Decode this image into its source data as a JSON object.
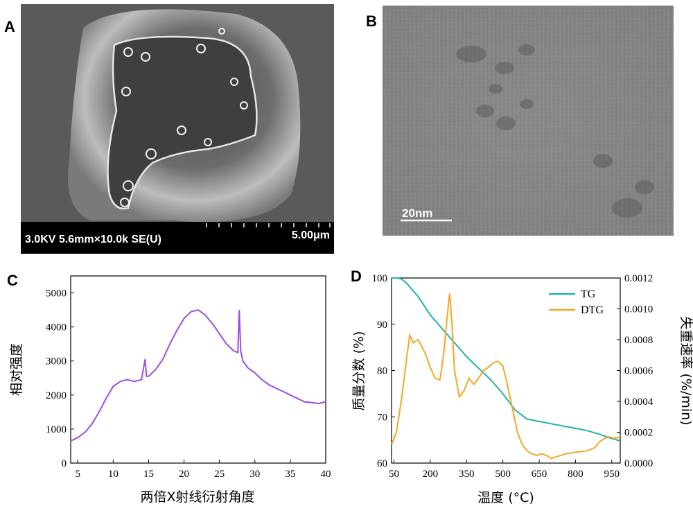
{
  "panels": {
    "a": {
      "label": "A",
      "info_bar": "3.0KV 5.6mm×10.0k SE(U)",
      "scale_bar": "5.00μm"
    },
    "b": {
      "label": "B",
      "scale_bar": "20nm"
    },
    "c": {
      "label": "C"
    },
    "d": {
      "label": "D"
    }
  },
  "colors": {
    "xrd_line": "#9b4de0",
    "tg_line": "#20b2aa",
    "dtg_line": "#f5a623"
  },
  "chart_data": [
    {
      "type": "line",
      "panel": "C",
      "title": "",
      "xlabel": "两倍X射线衍射角度",
      "ylabel": "相对强度",
      "xlim": [
        4,
        40
      ],
      "ylim": [
        0,
        5500
      ],
      "xticks": [
        5,
        10,
        15,
        20,
        25,
        30,
        35,
        40
      ],
      "yticks": [
        0,
        1000,
        2000,
        3000,
        4000,
        5000
      ],
      "grid": false,
      "series": [
        {
          "x": [
            4,
            5,
            6,
            7,
            8,
            9,
            10,
            11,
            12,
            13,
            14,
            14.5,
            14.7,
            15,
            16,
            17,
            18,
            19,
            20,
            21,
            22,
            23,
            24,
            25,
            26,
            27,
            27.6,
            27.8,
            28.0,
            28.3,
            29,
            30,
            31,
            32,
            33,
            34,
            35,
            36,
            37,
            38,
            39,
            40
          ],
          "y": [
            650,
            750,
            900,
            1150,
            1500,
            1900,
            2250,
            2400,
            2450,
            2400,
            2450,
            3050,
            2550,
            2550,
            2750,
            3050,
            3500,
            3900,
            4250,
            4450,
            4500,
            4350,
            4100,
            3800,
            3500,
            3300,
            3250,
            4500,
            3300,
            3000,
            2800,
            2650,
            2450,
            2300,
            2200,
            2100,
            2000,
            1900,
            1800,
            1780,
            1750,
            1800
          ]
        }
      ]
    },
    {
      "type": "line",
      "panel": "D",
      "title": "",
      "xlabel": "温度 (°C)",
      "ylabel": "质量分数 (%)",
      "ylabel_right": "失重速率 (%/min)",
      "xlim": [
        40,
        985
      ],
      "ylim": [
        60,
        100
      ],
      "ylim_right": [
        0,
        0.0012
      ],
      "xticks": [
        50,
        200,
        350,
        500,
        650,
        800,
        950
      ],
      "yticks": [
        60,
        70,
        80,
        90,
        100
      ],
      "yticks_right": [
        "0.0000",
        "0.0002",
        "0.0004",
        "0.0006",
        "0.0008",
        "0.0010",
        "0.0012"
      ],
      "grid": false,
      "legend_position": "top-right",
      "series": [
        {
          "name": "TG",
          "axis": "left",
          "x": [
            40,
            60,
            80,
            100,
            150,
            200,
            250,
            300,
            350,
            400,
            450,
            500,
            550,
            600,
            650,
            700,
            750,
            800,
            850,
            900,
            950,
            985
          ],
          "y": [
            100,
            100,
            99.8,
            99,
            96,
            92,
            89,
            86,
            83,
            80.5,
            78,
            75,
            71.5,
            69.5,
            69,
            68.5,
            68,
            67.5,
            67,
            66.2,
            65.3,
            64.8
          ]
        },
        {
          "name": "DTG",
          "axis": "right",
          "x": [
            40,
            60,
            80,
            100,
            115,
            130,
            150,
            180,
            200,
            220,
            240,
            255,
            270,
            280,
            290,
            300,
            320,
            340,
            360,
            380,
            400,
            420,
            440,
            460,
            480,
            500,
            520,
            540,
            560,
            580,
            600,
            620,
            640,
            660,
            680,
            700,
            720,
            760,
            800,
            850,
            880,
            900,
            920,
            940,
            960,
            985
          ],
          "y": [
            0.00012,
            0.0002,
            0.0004,
            0.00065,
            0.00083,
            0.00078,
            0.0008,
            0.00071,
            0.00062,
            0.00055,
            0.00054,
            0.0007,
            0.00095,
            0.0011,
            0.0009,
            0.0006,
            0.00043,
            0.00047,
            0.00055,
            0.00051,
            0.00055,
            0.0006,
            0.00062,
            0.00065,
            0.00066,
            0.00063,
            0.0005,
            0.00035,
            0.0002,
            0.00012,
            8e-05,
            6e-05,
            5e-05,
            6e-05,
            5e-05,
            3e-05,
            4e-05,
            6e-05,
            7e-05,
            8e-05,
            0.0001,
            0.00014,
            0.00016,
            0.00017,
            0.00016,
            0.00017
          ]
        }
      ]
    }
  ]
}
